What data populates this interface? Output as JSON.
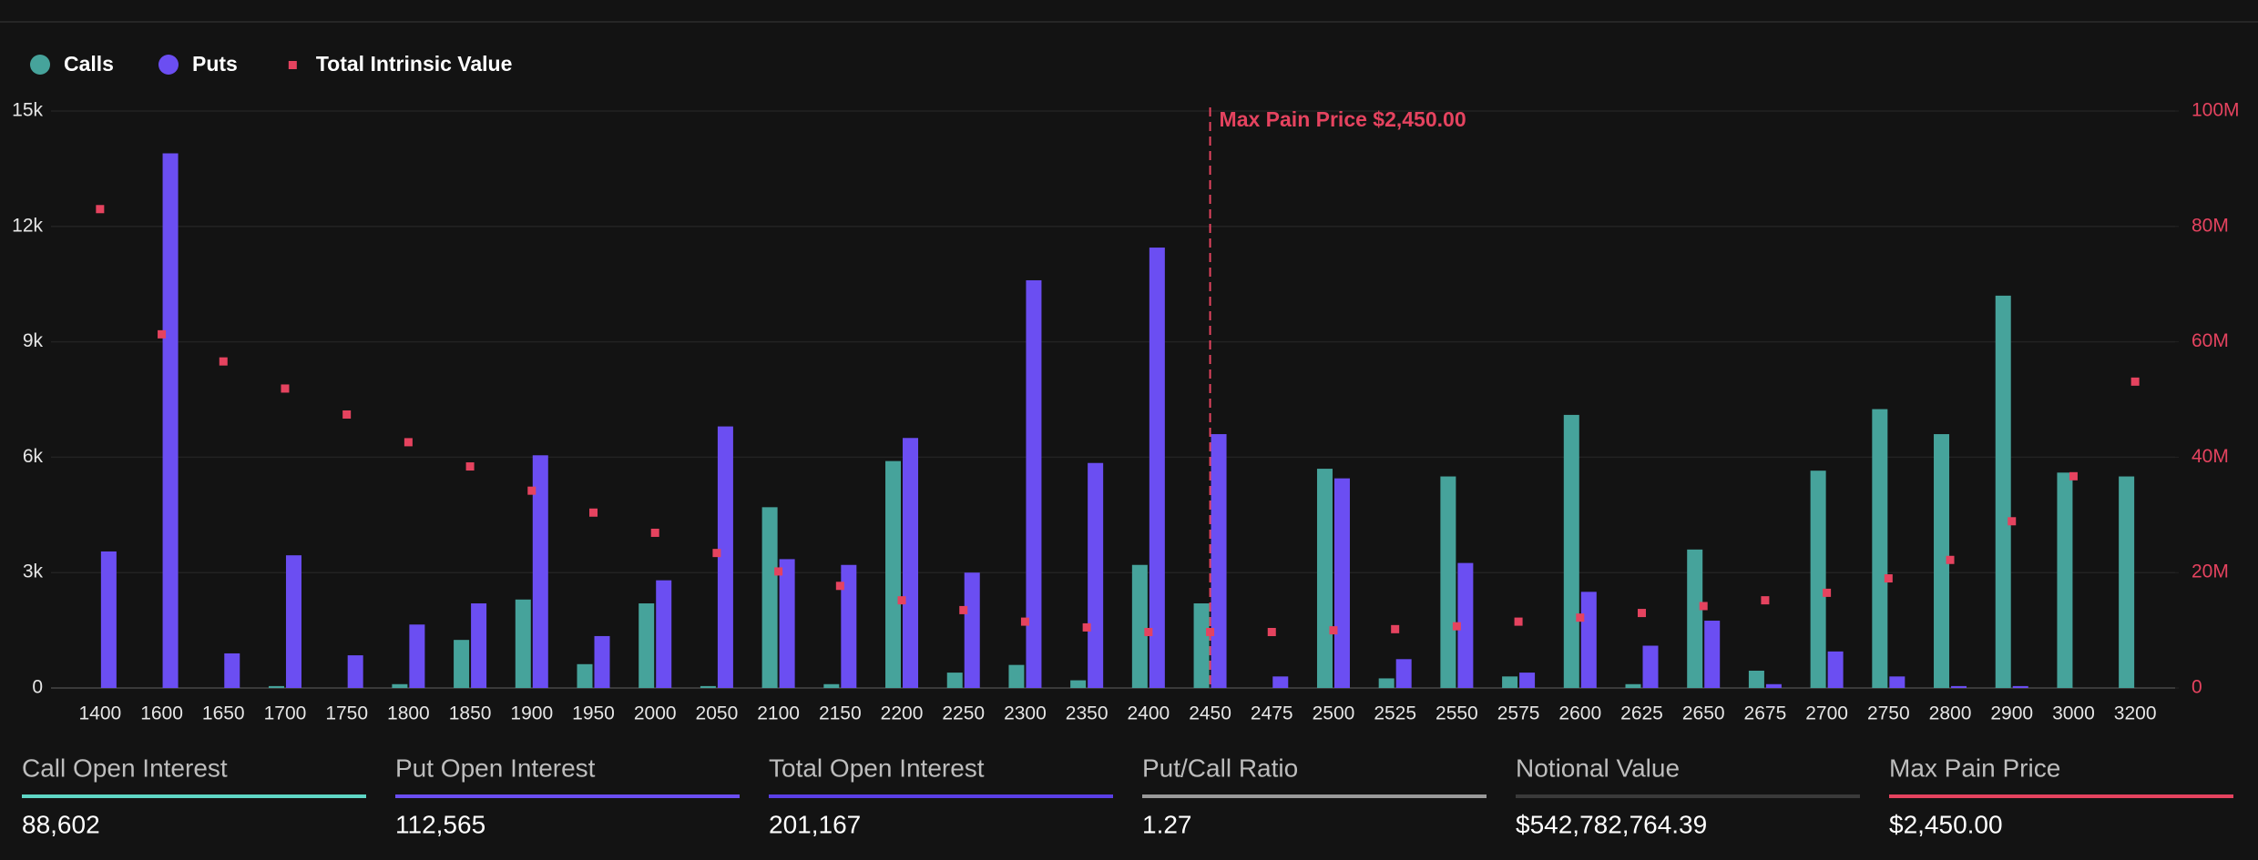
{
  "chart_data": {
    "type": "bar",
    "categories": [
      "1400",
      "1600",
      "1650",
      "1700",
      "1750",
      "1800",
      "1850",
      "1900",
      "1950",
      "2000",
      "2050",
      "2100",
      "2150",
      "2200",
      "2250",
      "2300",
      "2350",
      "2400",
      "2450",
      "2475",
      "2500",
      "2525",
      "2550",
      "2575",
      "2600",
      "2625",
      "2650",
      "2675",
      "2700",
      "2750",
      "2800",
      "2900",
      "3000",
      "3200"
    ],
    "series": [
      {
        "name": "Calls",
        "color": "#46a39b",
        "values": [
          0,
          0,
          0,
          50,
          0,
          100,
          1250,
          2300,
          620,
          2200,
          50,
          4700,
          100,
          5900,
          400,
          600,
          200,
          3200,
          2200,
          0,
          5700,
          250,
          5500,
          300,
          7100,
          100,
          3600,
          450,
          5650,
          7250,
          6600,
          10200,
          5600,
          5500
        ]
      },
      {
        "name": "Puts",
        "color": "#6b4ef2",
        "values": [
          3550,
          13900,
          900,
          3450,
          850,
          1650,
          2200,
          6050,
          1350,
          2800,
          6800,
          3350,
          3200,
          6500,
          3000,
          10600,
          5850,
          11450,
          6600,
          300,
          5450,
          750,
          3250,
          400,
          2500,
          1100,
          1750,
          100,
          950,
          300,
          50,
          50,
          0,
          0
        ]
      },
      {
        "name": "Total Intrinsic Value",
        "color": "#e5435f",
        "axis": "y2",
        "marker": "square",
        "values": [
          83000000,
          61300000,
          56600000,
          51900000,
          47400000,
          42600000,
          38400000,
          34200000,
          30400000,
          26900000,
          23400000,
          20200000,
          17700000,
          15200000,
          13500000,
          11500000,
          10500000,
          9700000,
          9700000,
          9700000,
          10000000,
          10200000,
          10700000,
          11500000,
          12200000,
          13000000,
          14200000,
          15200000,
          16500000,
          19000000,
          22200000,
          28900000,
          36700000,
          53100000
        ]
      }
    ],
    "ylim": [
      0,
      15000
    ],
    "yticks": [
      {
        "value": 0,
        "label": "0"
      },
      {
        "value": 3000,
        "label": "3k"
      },
      {
        "value": 6000,
        "label": "6k"
      },
      {
        "value": 9000,
        "label": "9k"
      },
      {
        "value": 12000,
        "label": "12k"
      },
      {
        "value": 15000,
        "label": "15k"
      }
    ],
    "y2lim": [
      0,
      100000000
    ],
    "y2ticks": [
      {
        "value": 0,
        "label": "0"
      },
      {
        "value": 20000000,
        "label": "20M"
      },
      {
        "value": 40000000,
        "label": "40M"
      },
      {
        "value": 60000000,
        "label": "60M"
      },
      {
        "value": 80000000,
        "label": "80M"
      },
      {
        "value": 100000000,
        "label": "100M"
      }
    ],
    "grid": true,
    "annotation": {
      "text": "Max Pain Price $2,450.00",
      "x": "2450",
      "color": "#e5435f"
    }
  },
  "stats": [
    {
      "label": "Call Open Interest",
      "value": "88,602",
      "color": "#5fd6c5"
    },
    {
      "label": "Put Open Interest",
      "value": "112,565",
      "color": "#6b4ef2"
    },
    {
      "label": "Total Open Interest",
      "value": "201,167",
      "color": "#5a3fe6"
    },
    {
      "label": "Put/Call Ratio",
      "value": "1.27",
      "color": "#9a9a9a"
    },
    {
      "label": "Notional Value",
      "value": "$542,782,764.39",
      "color": "#3a3a3a"
    },
    {
      "label": "Max Pain Price",
      "value": "$2,450.00",
      "color": "#e5435f"
    }
  ]
}
